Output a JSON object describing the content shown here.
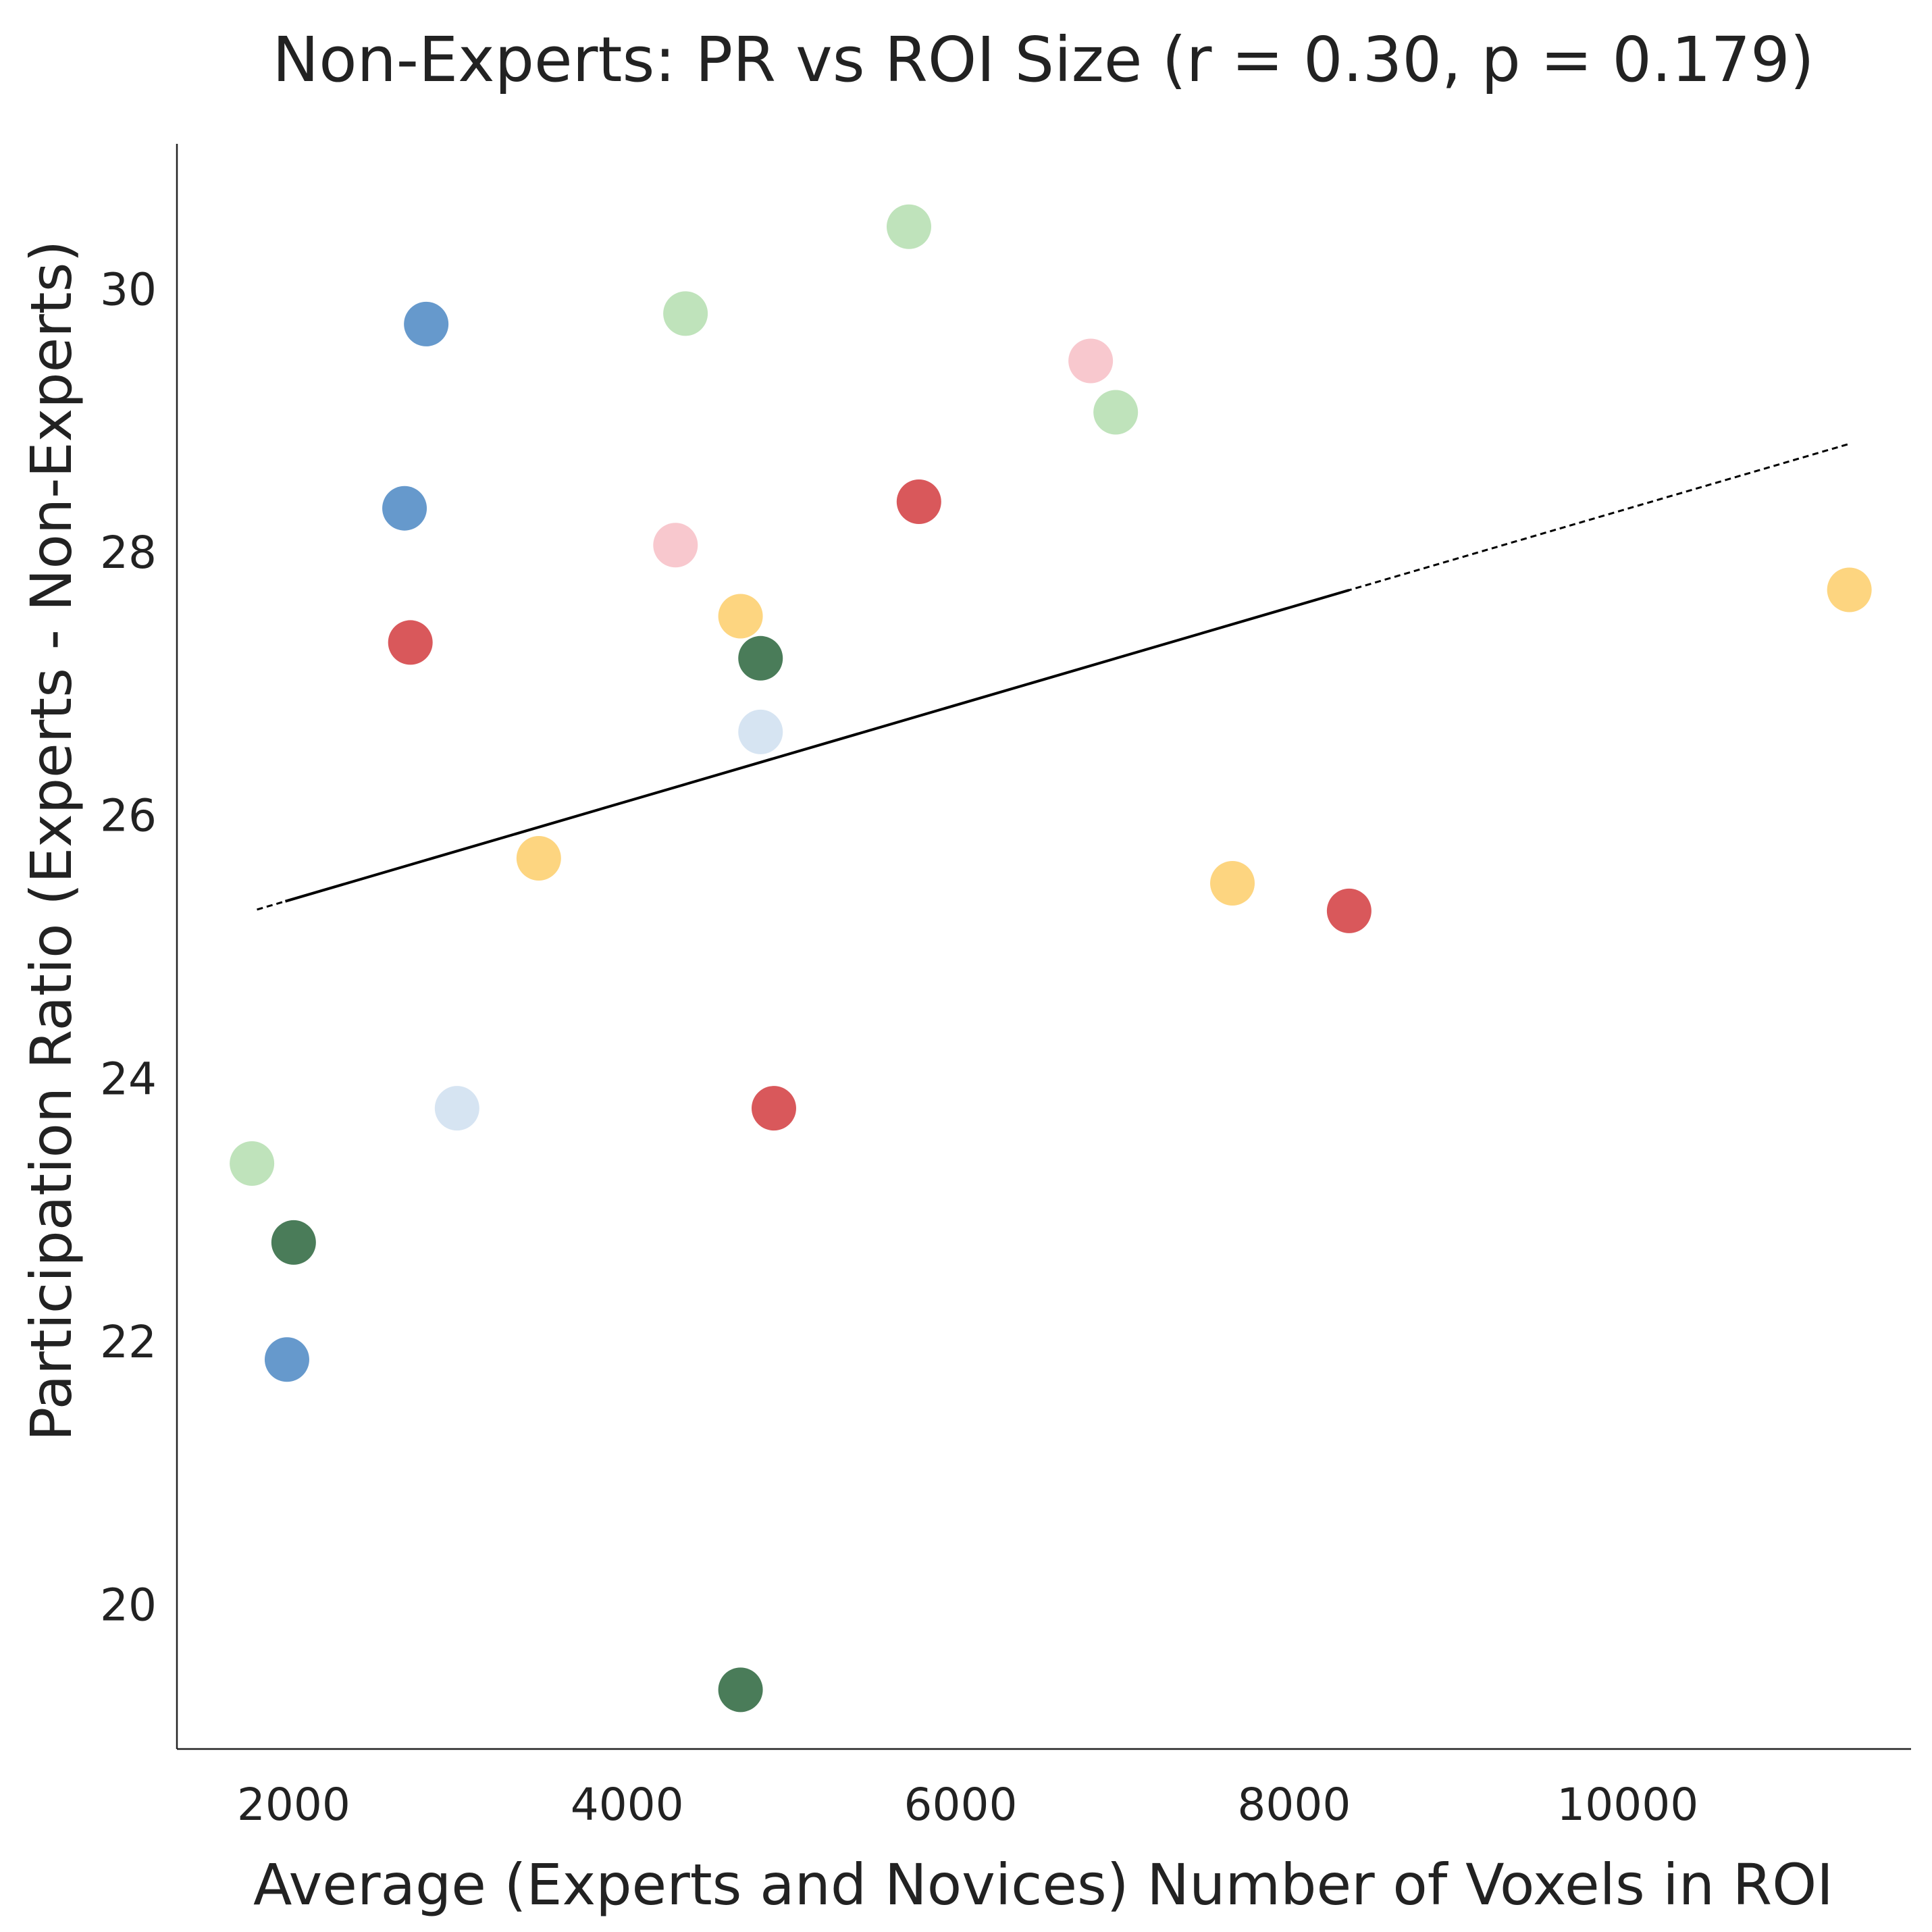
{
  "chart_data": {
    "type": "scatter",
    "title": "Non-Experts: PR vs ROI Size (r = 0.30, p = 0.179)",
    "xlabel": "Average (Experts and Novices) Number of Voxels in ROI",
    "ylabel": "Participation Ratio (Experts - Non-Experts)",
    "xlim": [
      1300,
      11700
    ],
    "ylim": [
      18.9,
      31.1
    ],
    "x_ticks": [
      2000,
      4000,
      6000,
      8000,
      10000
    ],
    "y_ticks": [
      20,
      22,
      24,
      26,
      28,
      30
    ],
    "x_tick_labels": [
      "2000",
      "4000",
      "6000",
      "8000",
      "10000"
    ],
    "y_tick_labels": [
      "20",
      "22",
      "24",
      "26",
      "28",
      "30"
    ],
    "grid": false,
    "regression_line": {
      "x_start": 1780,
      "x_end": 11330,
      "y_start": 25.28,
      "y_end": 28.82,
      "solid_x_range": [
        1950,
        8330
      ]
    },
    "points": [
      {
        "x": 2795,
        "y": 29.73,
        "color": "#6699cc"
      },
      {
        "x": 2665,
        "y": 28.33,
        "color": "#6699cc"
      },
      {
        "x": 1960,
        "y": 21.86,
        "color": "#6699cc"
      },
      {
        "x": 2980,
        "y": 23.77,
        "color": "#d6e4f2"
      },
      {
        "x": 4800,
        "y": 26.63,
        "color": "#d6e4f2"
      },
      {
        "x": 5690,
        "y": 30.47,
        "color": "#bfe3bb"
      },
      {
        "x": 4350,
        "y": 29.81,
        "color": "#bfe3bb"
      },
      {
        "x": 6930,
        "y": 29.06,
        "color": "#bfe3bb"
      },
      {
        "x": 1750,
        "y": 23.35,
        "color": "#bfe3bb"
      },
      {
        "x": 4800,
        "y": 27.19,
        "color": "#4a7c59"
      },
      {
        "x": 2000,
        "y": 22.75,
        "color": "#4a7c59"
      },
      {
        "x": 4680,
        "y": 19.35,
        "color": "#4a7c59"
      },
      {
        "x": 6780,
        "y": 29.45,
        "color": "#f8c8ce"
      },
      {
        "x": 4290,
        "y": 28.05,
        "color": "#f8c8ce"
      },
      {
        "x": 5750,
        "y": 28.38,
        "color": "#d9585b"
      },
      {
        "x": 2700,
        "y": 27.31,
        "color": "#d9585b"
      },
      {
        "x": 4880,
        "y": 23.77,
        "color": "#d9585b"
      },
      {
        "x": 8330,
        "y": 25.27,
        "color": "#d9585b"
      },
      {
        "x": 4680,
        "y": 27.51,
        "color": "#fdd580"
      },
      {
        "x": 3470,
        "y": 25.67,
        "color": "#fdd580"
      },
      {
        "x": 7630,
        "y": 25.48,
        "color": "#fdd580"
      },
      {
        "x": 11330,
        "y": 27.71,
        "color": "#fdd580"
      }
    ]
  }
}
